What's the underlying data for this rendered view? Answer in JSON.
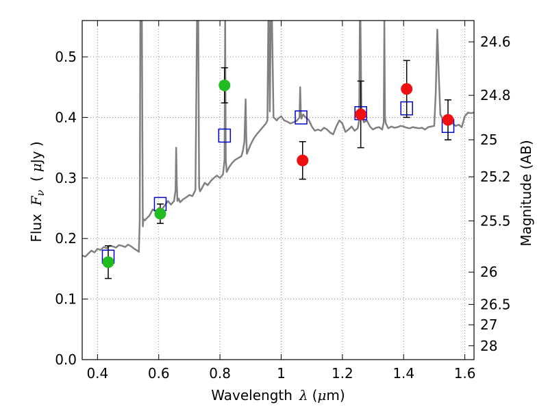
{
  "chart_data": {
    "type": "scatter",
    "xlabel": "Wavelength",
    "xlabel_symbol": "λ",
    "xlabel_unit_open": "(",
    "xlabel_unit_mu": "μ",
    "xlabel_unit_rest": "m)",
    "ylabel": "Flux",
    "ylabel_symbol": "F",
    "ylabel_subscript": "ν",
    "ylabel_unit_open": "(",
    "ylabel_unit_mu": "μ",
    "ylabel_unit_rest": "Jy )",
    "ylabel_right": "Magnitude (AB)",
    "xlim": [
      0.35,
      1.63
    ],
    "ylim": [
      0.0,
      0.56
    ],
    "grid": true,
    "x_ticks": [
      {
        "value": 0.4,
        "label": "0.4"
      },
      {
        "value": 0.6,
        "label": "0.6"
      },
      {
        "value": 0.8,
        "label": "0.8"
      },
      {
        "value": 1.0,
        "label": "1"
      },
      {
        "value": 1.2,
        "label": "1.2"
      },
      {
        "value": 1.4,
        "label": "1.4"
      },
      {
        "value": 1.6,
        "label": "1.6"
      }
    ],
    "y_ticks": [
      {
        "value": 0.0,
        "label": "0.0"
      },
      {
        "value": 0.1,
        "label": "0.1"
      },
      {
        "value": 0.2,
        "label": "0.2"
      },
      {
        "value": 0.3,
        "label": "0.3"
      },
      {
        "value": 0.4,
        "label": "0.4"
      },
      {
        "value": 0.5,
        "label": "0.5"
      }
    ],
    "mag_ticks": [
      {
        "mag": 24.6,
        "label": "24.6"
      },
      {
        "mag": 24.8,
        "label": "24.8"
      },
      {
        "mag": 25.0,
        "label": "25"
      },
      {
        "mag": 25.2,
        "label": "25.2"
      },
      {
        "mag": 25.5,
        "label": "25.5"
      },
      {
        "mag": 26.0,
        "label": "26"
      },
      {
        "mag": 26.5,
        "label": "26.5"
      },
      {
        "mag": 27.0,
        "label": "27"
      },
      {
        "mag": 28.0,
        "label": "28"
      }
    ],
    "colors": {
      "model": "#808080",
      "model_points": "#0000cc",
      "green_points": "#22bb22",
      "red_points": "#ee1111",
      "error_bars": "#000000",
      "grid": "#888888"
    },
    "series": [
      {
        "name": "model spectrum",
        "kind": "line",
        "x": [
          0.35,
          0.36,
          0.37,
          0.38,
          0.39,
          0.4,
          0.41,
          0.42,
          0.43,
          0.44,
          0.45,
          0.46,
          0.47,
          0.48,
          0.49,
          0.5,
          0.51,
          0.52,
          0.53,
          0.535,
          0.538,
          0.54,
          0.542,
          0.545,
          0.548,
          0.55,
          0.555,
          0.56,
          0.57,
          0.58,
          0.59,
          0.6,
          0.61,
          0.62,
          0.63,
          0.64,
          0.65,
          0.655,
          0.657,
          0.659,
          0.661,
          0.665,
          0.67,
          0.68,
          0.69,
          0.7,
          0.71,
          0.72,
          0.725,
          0.727,
          0.729,
          0.732,
          0.735,
          0.74,
          0.75,
          0.76,
          0.77,
          0.78,
          0.79,
          0.8,
          0.81,
          0.815,
          0.817,
          0.819,
          0.822,
          0.83,
          0.84,
          0.85,
          0.86,
          0.87,
          0.875,
          0.88,
          0.884,
          0.886,
          0.888,
          0.892,
          0.9,
          0.91,
          0.92,
          0.93,
          0.94,
          0.95,
          0.955,
          0.958,
          0.96,
          0.963,
          0.966,
          0.97,
          0.975,
          0.98,
          0.985,
          0.99,
          1.0,
          1.01,
          1.02,
          1.03,
          1.04,
          1.05,
          1.06,
          1.062,
          1.064,
          1.066,
          1.068,
          1.072,
          1.08,
          1.09,
          1.1,
          1.11,
          1.12,
          1.13,
          1.14,
          1.15,
          1.16,
          1.17,
          1.18,
          1.19,
          1.2,
          1.21,
          1.22,
          1.23,
          1.24,
          1.25,
          1.255,
          1.257,
          1.259,
          1.262,
          1.27,
          1.28,
          1.29,
          1.3,
          1.31,
          1.32,
          1.33,
          1.335,
          1.337,
          1.339,
          1.342,
          1.35,
          1.36,
          1.37,
          1.38,
          1.39,
          1.4,
          1.41,
          1.42,
          1.43,
          1.44,
          1.45,
          1.46,
          1.47,
          1.48,
          1.49,
          1.5,
          1.505,
          1.51,
          1.515,
          1.52,
          1.53,
          1.54,
          1.55,
          1.56,
          1.57,
          1.58,
          1.59,
          1.6,
          1.61,
          1.62,
          1.63
        ],
        "y": [
          0.172,
          0.17,
          0.175,
          0.18,
          0.177,
          0.183,
          0.181,
          0.186,
          0.184,
          0.188,
          0.187,
          0.185,
          0.189,
          0.188,
          0.186,
          0.19,
          0.187,
          0.183,
          0.18,
          0.178,
          0.23,
          0.56,
          0.56,
          0.56,
          0.22,
          0.232,
          0.23,
          0.233,
          0.238,
          0.248,
          0.245,
          0.25,
          0.248,
          0.255,
          0.262,
          0.256,
          0.262,
          0.28,
          0.35,
          0.29,
          0.262,
          0.266,
          0.26,
          0.265,
          0.268,
          0.272,
          0.27,
          0.28,
          0.56,
          0.56,
          0.56,
          0.285,
          0.278,
          0.282,
          0.292,
          0.288,
          0.295,
          0.3,
          0.304,
          0.3,
          0.306,
          0.33,
          0.56,
          0.33,
          0.31,
          0.318,
          0.325,
          0.33,
          0.333,
          0.336,
          0.345,
          0.36,
          0.43,
          0.37,
          0.34,
          0.345,
          0.355,
          0.365,
          0.372,
          0.378,
          0.384,
          0.39,
          0.395,
          0.56,
          0.56,
          0.41,
          0.56,
          0.56,
          0.4,
          0.398,
          0.395,
          0.398,
          0.402,
          0.395,
          0.393,
          0.39,
          0.392,
          0.394,
          0.4,
          0.45,
          0.41,
          0.398,
          0.4,
          0.405,
          0.4,
          0.396,
          0.385,
          0.378,
          0.38,
          0.378,
          0.383,
          0.38,
          0.375,
          0.372,
          0.385,
          0.395,
          0.39,
          0.376,
          0.38,
          0.385,
          0.378,
          0.382,
          0.396,
          0.56,
          0.56,
          0.41,
          0.392,
          0.395,
          0.385,
          0.38,
          0.383,
          0.384,
          0.38,
          0.392,
          0.56,
          0.4,
          0.39,
          0.382,
          0.385,
          0.383,
          0.384,
          0.386,
          0.385,
          0.383,
          0.382,
          0.384,
          0.383,
          0.382,
          0.383,
          0.38,
          0.384,
          0.385,
          0.386,
          0.44,
          0.545,
          0.47,
          0.405,
          0.395,
          0.398,
          0.392,
          0.39,
          0.386,
          0.388,
          0.384,
          0.402,
          0.408,
          0.407,
          0.408
        ]
      },
      {
        "name": "model photometry",
        "kind": "open-square",
        "x": [
          0.435,
          0.605,
          0.815,
          1.065,
          1.26,
          1.41,
          1.545
        ],
        "y": [
          0.17,
          0.257,
          0.37,
          0.4,
          0.407,
          0.415,
          0.386
        ]
      },
      {
        "name": "observed optical (green)",
        "kind": "filled-circle",
        "x": [
          0.435,
          0.605,
          0.815
        ],
        "y": [
          0.161,
          0.241,
          0.453
        ],
        "yerr": [
          0.027,
          0.016,
          0.029
        ]
      },
      {
        "name": "observed near-IR (red)",
        "kind": "filled-circle",
        "x": [
          1.07,
          1.26,
          1.41,
          1.545
        ],
        "y": [
          0.329,
          0.405,
          0.447,
          0.396
        ],
        "yerr": [
          0.031,
          0.055,
          0.047,
          0.033
        ]
      }
    ]
  }
}
